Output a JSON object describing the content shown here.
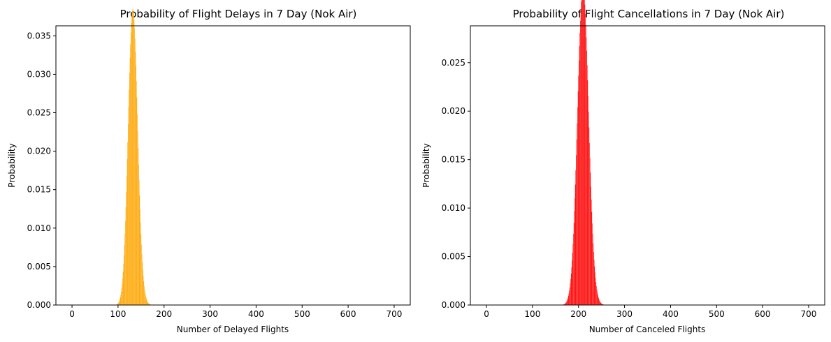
{
  "chart_data": [
    {
      "type": "bar",
      "title": "Probability of Flight Delays in 7 Day (Nok Air)",
      "xlabel": "Number of Delayed Flights",
      "ylabel": "Probability",
      "xlim": [
        -35,
        735
      ],
      "ylim": [
        0,
        0.0363
      ],
      "xticks": [
        0,
        100,
        200,
        300,
        400,
        500,
        600,
        700
      ],
      "xtick_labels": [
        "0",
        "100",
        "200",
        "300",
        "400",
        "500",
        "600",
        "700"
      ],
      "yticks": [
        0,
        0.005,
        0.01,
        0.015,
        0.02,
        0.025,
        0.03,
        0.035
      ],
      "ytick_labels": [
        "0.000",
        "0.005",
        "0.010",
        "0.015",
        "0.020",
        "0.025",
        "0.030",
        "0.035"
      ],
      "grid": false,
      "color": "#FFA500",
      "distribution": {
        "kind": "binomial-pmf",
        "n": 700,
        "mean": 132.5,
        "support": [
          0,
          700
        ]
      },
      "peak": {
        "x": 132,
        "y": 0.0345
      }
    },
    {
      "type": "bar",
      "title": "Probability of Flight Cancellations in 7 Day (Nok Air)",
      "xlabel": "Number of Canceled Flights",
      "ylabel": "Probability",
      "xlim": [
        -35,
        735
      ],
      "ylim": [
        0,
        0.0288
      ],
      "xticks": [
        0,
        100,
        200,
        300,
        400,
        500,
        600,
        700
      ],
      "xtick_labels": [
        "0",
        "100",
        "200",
        "300",
        "400",
        "500",
        "600",
        "700"
      ],
      "yticks": [
        0,
        0.005,
        0.01,
        0.015,
        0.02,
        0.025
      ],
      "ytick_labels": [
        "0.000",
        "0.005",
        "0.010",
        "0.015",
        "0.020",
        "0.025"
      ],
      "grid": false,
      "color": "#FF0000",
      "distribution": {
        "kind": "binomial-pmf",
        "n": 700,
        "mean": 210,
        "support": [
          0,
          700
        ]
      },
      "peak": {
        "x": 210,
        "y": 0.0275
      }
    }
  ]
}
